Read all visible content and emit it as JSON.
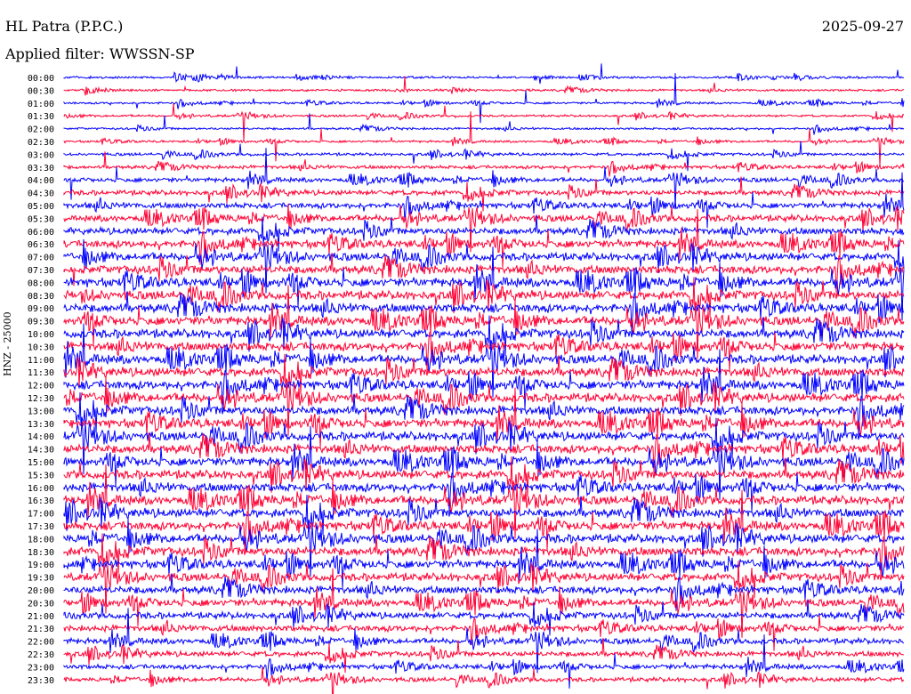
{
  "header": {
    "station": "HL Patra (P.P.C.)",
    "date": "2025-09-27",
    "filter": "Applied filter: WWSSN-SP"
  },
  "channel_label": "HNZ - 25000",
  "colors": {
    "odd_trace": "#0000ff",
    "even_trace": "#ff0033",
    "text": "#000000"
  },
  "chart_data": {
    "type": "line",
    "title": "HL Patra (P.P.C.)",
    "subtitle": "Applied filter: WWSSN-SP",
    "ylabel": "HNZ - 25000",
    "xlabel": "",
    "rows": [
      "00:00",
      "00:30",
      "01:00",
      "01:30",
      "02:00",
      "02:30",
      "03:00",
      "03:30",
      "04:00",
      "04:30",
      "05:00",
      "05:30",
      "06:00",
      "06:30",
      "07:00",
      "07:30",
      "08:00",
      "08:30",
      "09:00",
      "09:30",
      "10:00",
      "10:30",
      "11:00",
      "11:30",
      "12:00",
      "12:30",
      "13:00",
      "13:30",
      "14:00",
      "14:30",
      "15:00",
      "15:30",
      "16:00",
      "16:30",
      "17:00",
      "17:30",
      "18:00",
      "18:30",
      "19:00",
      "19:30",
      "20:00",
      "20:30",
      "21:00",
      "21:30",
      "22:00",
      "22:30",
      "23:00",
      "23:30"
    ],
    "row_minutes": 30,
    "row_colors": [
      "blue",
      "red"
    ],
    "relative_noise_amplitude": [
      1,
      1,
      1,
      1,
      1,
      1,
      1.3,
      1.6,
      2,
      2.3,
      2.6,
      3,
      3.2,
      3.5,
      3.6,
      3.8,
      4,
      4,
      4,
      4,
      4,
      4,
      4,
      4,
      4,
      4,
      4,
      4,
      4,
      4,
      4,
      4,
      4,
      4,
      4,
      4,
      4,
      4,
      3.8,
      3.6,
      3.5,
      3.3,
      3,
      2.8,
      2.6,
      2.4,
      2.2,
      2
    ],
    "grid": false
  }
}
